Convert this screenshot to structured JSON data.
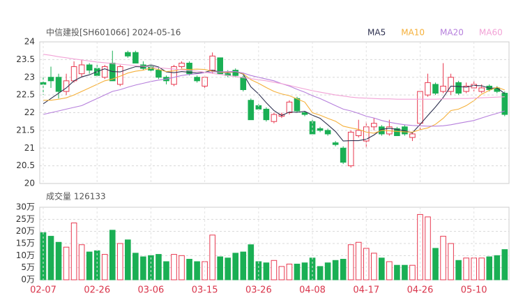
{
  "chart_data": [
    {
      "type": "candlestick",
      "title": "中信建投[SH601066] 2024-05-16",
      "up_color": "#e8384f",
      "down_color": "#1aaf54",
      "open": [
        22.85,
        23.0,
        23.0,
        22.6,
        22.9,
        23.1,
        23.35,
        23.25,
        23.0,
        23.4,
        22.8,
        23.7,
        23.7,
        23.35,
        23.3,
        23.2,
        23.0,
        22.8,
        23.3,
        23.4,
        23.0,
        22.75,
        23.2,
        23.55,
        23.1,
        23.2,
        23.0,
        22.35,
        22.2,
        22.1,
        21.75,
        21.9,
        22.0,
        22.4,
        22.0,
        21.75,
        21.55,
        21.5,
        21.15,
        21.0,
        20.5,
        21.35,
        21.2,
        21.6,
        21.6,
        21.4,
        21.55,
        21.6,
        21.3,
        21.7,
        22.5,
        22.8,
        22.6,
        22.6,
        22.85,
        22.6,
        22.7,
        22.6,
        22.75,
        22.7,
        22.55
      ],
      "high": [
        23.0,
        23.3,
        23.1,
        23.1,
        23.45,
        23.5,
        23.4,
        23.35,
        23.35,
        23.75,
        23.35,
        23.75,
        23.75,
        23.45,
        23.35,
        23.3,
        23.05,
        23.35,
        23.45,
        23.45,
        23.05,
        23.05,
        23.7,
        23.55,
        23.2,
        23.25,
        23.05,
        22.4,
        22.25,
        22.15,
        22.0,
        22.0,
        22.35,
        22.45,
        22.05,
        21.8,
        21.6,
        21.55,
        21.2,
        21.05,
        21.5,
        21.8,
        21.75,
        21.85,
        21.65,
        21.8,
        21.6,
        21.65,
        21.45,
        22.6,
        23.1,
        22.85,
        23.4,
        23.1,
        22.9,
        22.85,
        22.9,
        22.8,
        22.8,
        22.75,
        22.6
      ],
      "low": [
        22.5,
        22.7,
        22.4,
        22.5,
        22.85,
        23.0,
        23.1,
        23.0,
        22.95,
        22.9,
        22.75,
        23.55,
        23.4,
        23.2,
        23.15,
        22.95,
        22.8,
        22.75,
        23.25,
        23.05,
        22.85,
        22.7,
        23.1,
        23.1,
        23.0,
        23.0,
        22.6,
        21.8,
        22.05,
        21.75,
        21.7,
        21.85,
        21.95,
        22.0,
        21.9,
        21.35,
        21.45,
        21.35,
        21.05,
        20.55,
        20.45,
        21.3,
        21.0,
        21.5,
        21.35,
        21.35,
        21.35,
        21.35,
        21.2,
        21.5,
        22.45,
        22.5,
        22.55,
        22.5,
        22.5,
        22.55,
        22.6,
        22.55,
        22.6,
        22.55,
        21.9
      ],
      "close": [
        22.8,
        22.9,
        22.6,
        22.9,
        23.3,
        23.35,
        23.2,
        23.05,
        23.3,
        22.9,
        23.3,
        23.6,
        23.4,
        23.25,
        23.2,
        23.0,
        22.9,
        23.3,
        23.4,
        23.1,
        22.9,
        23.0,
        23.6,
        23.1,
        23.05,
        23.05,
        22.65,
        21.8,
        22.1,
        21.8,
        21.95,
        21.95,
        22.3,
        22.05,
        21.95,
        21.4,
        21.5,
        21.4,
        21.1,
        20.6,
        21.45,
        21.5,
        21.6,
        21.7,
        21.4,
        21.6,
        21.35,
        21.4,
        21.4,
        22.6,
        22.85,
        22.55,
        22.75,
        23.0,
        22.55,
        22.75,
        22.8,
        22.7,
        22.65,
        22.6,
        21.95
      ],
      "series": [
        {
          "name": "MA5",
          "color": "#2e3150",
          "values": [
            22.25,
            22.4,
            22.55,
            22.7,
            22.9,
            23.01,
            23.07,
            23.16,
            23.24,
            23.16,
            23.15,
            23.23,
            23.3,
            23.29,
            23.35,
            23.29,
            23.15,
            23.13,
            23.16,
            23.14,
            23.12,
            23.14,
            23.2,
            23.14,
            23.13,
            23.16,
            23.09,
            22.73,
            22.53,
            22.28,
            22.06,
            21.92,
            22.02,
            22.01,
            22.04,
            21.93,
            21.84,
            21.66,
            21.47,
            21.2,
            21.21,
            21.21,
            21.25,
            21.37,
            21.53,
            21.56,
            21.53,
            21.49,
            21.43,
            21.67,
            21.92,
            22.16,
            22.43,
            22.75,
            22.74,
            22.72,
            22.77,
            22.76,
            22.69,
            22.7,
            22.54
          ]
        },
        {
          "name": "MA10",
          "color": "#f5b03a",
          "values": [
            22.35,
            22.35,
            22.38,
            22.42,
            22.5,
            22.6,
            22.7,
            22.8,
            22.9,
            22.95,
            23.03,
            23.12,
            23.17,
            23.2,
            23.26,
            23.22,
            23.16,
            23.18,
            23.23,
            23.22,
            23.23,
            23.22,
            23.17,
            23.14,
            23.14,
            23.16,
            23.1,
            22.93,
            22.83,
            22.71,
            22.6,
            22.53,
            22.48,
            22.39,
            22.3,
            22.0,
            21.93,
            21.84,
            21.76,
            21.62,
            21.57,
            21.53,
            21.45,
            21.42,
            21.5,
            21.49,
            21.47,
            21.46,
            21.45,
            21.52,
            21.57,
            21.67,
            21.84,
            22.06,
            22.1,
            22.2,
            22.34,
            22.52,
            22.63,
            22.72,
            22.64
          ]
        },
        {
          "name": "MA20",
          "color": "#b67fdc",
          "values": [
            21.95,
            22.0,
            22.05,
            22.1,
            22.15,
            22.2,
            22.3,
            22.4,
            22.5,
            22.6,
            22.65,
            22.72,
            22.78,
            22.83,
            22.88,
            22.92,
            22.95,
            23.0,
            23.05,
            23.08,
            23.1,
            23.13,
            23.15,
            23.15,
            23.16,
            23.16,
            23.12,
            23.05,
            23.0,
            22.95,
            22.9,
            22.82,
            22.75,
            22.66,
            22.58,
            22.48,
            22.4,
            22.3,
            22.2,
            22.1,
            22.05,
            21.98,
            21.9,
            21.85,
            21.78,
            21.73,
            21.69,
            21.66,
            21.64,
            21.63,
            21.62,
            21.62,
            21.63,
            21.66,
            21.7,
            21.74,
            21.78,
            21.85,
            21.92,
            21.98,
            22.05
          ]
        },
        {
          "name": "MA60",
          "color": "#f2a2d6",
          "values": [
            23.65,
            23.62,
            23.58,
            23.55,
            23.52,
            23.49,
            23.46,
            23.43,
            23.41,
            23.39,
            23.37,
            23.35,
            23.33,
            23.31,
            23.29,
            23.27,
            23.25,
            23.23,
            23.21,
            23.19,
            23.17,
            23.14,
            23.11,
            23.08,
            23.05,
            23.02,
            22.99,
            22.96,
            22.93,
            22.9,
            22.86,
            22.82,
            22.77,
            22.72,
            22.67,
            22.62,
            22.58,
            22.54,
            22.5,
            22.47,
            22.44,
            22.42,
            22.41,
            22.4,
            22.39,
            22.39,
            22.38,
            22.38,
            22.38,
            22.38,
            22.38,
            22.38,
            22.39,
            22.39,
            22.4,
            22.4,
            22.41,
            22.42,
            22.43,
            22.44,
            22.45
          ]
        }
      ],
      "ylim": [
        20,
        24
      ],
      "yticks": [
        20,
        20.5,
        21,
        21.5,
        22,
        22.5,
        23,
        23.5,
        24
      ],
      "grid": true
    },
    {
      "type": "bar",
      "title": "成交量 126133",
      "categories": [
        "02-07",
        null,
        null,
        null,
        null,
        null,
        null,
        "02-26",
        null,
        null,
        null,
        null,
        null,
        null,
        "03-06",
        null,
        null,
        null,
        null,
        null,
        null,
        "03-15",
        null,
        null,
        null,
        null,
        null,
        null,
        "03-26",
        null,
        null,
        null,
        null,
        null,
        null,
        "04-08",
        null,
        null,
        null,
        null,
        null,
        null,
        "04-17",
        null,
        null,
        null,
        null,
        null,
        null,
        "04-26",
        null,
        null,
        null,
        null,
        null,
        null,
        "05-10",
        null,
        null,
        null,
        null
      ],
      "values": [
        19.5,
        18,
        15.5,
        13.5,
        23.5,
        14.5,
        11.5,
        12,
        10.5,
        20.5,
        15,
        16.5,
        11,
        9.5,
        10,
        10.5,
        7.5,
        10.5,
        10,
        8.5,
        7.5,
        7.5,
        18.5,
        9.5,
        9,
        11,
        11.5,
        14.5,
        7.5,
        7,
        8,
        5.5,
        6.5,
        6.5,
        7,
        9,
        5.5,
        7,
        8,
        8.5,
        14.5,
        15.5,
        13,
        11,
        9,
        7.5,
        6,
        6,
        6,
        27,
        26,
        13,
        18,
        15,
        8,
        9,
        9,
        9,
        9.5,
        10,
        12.5
      ],
      "ylim": [
        0,
        30
      ],
      "yticks": [
        {
          "value": 0,
          "label": "0万"
        },
        {
          "value": 5,
          "label": "5万"
        },
        {
          "value": 10,
          "label": "10万"
        },
        {
          "value": 15,
          "label": "15万"
        },
        {
          "value": 20,
          "label": "20万"
        },
        {
          "value": 25,
          "label": "25万"
        },
        {
          "value": 30,
          "label": "30万"
        }
      ],
      "grid": true
    }
  ]
}
